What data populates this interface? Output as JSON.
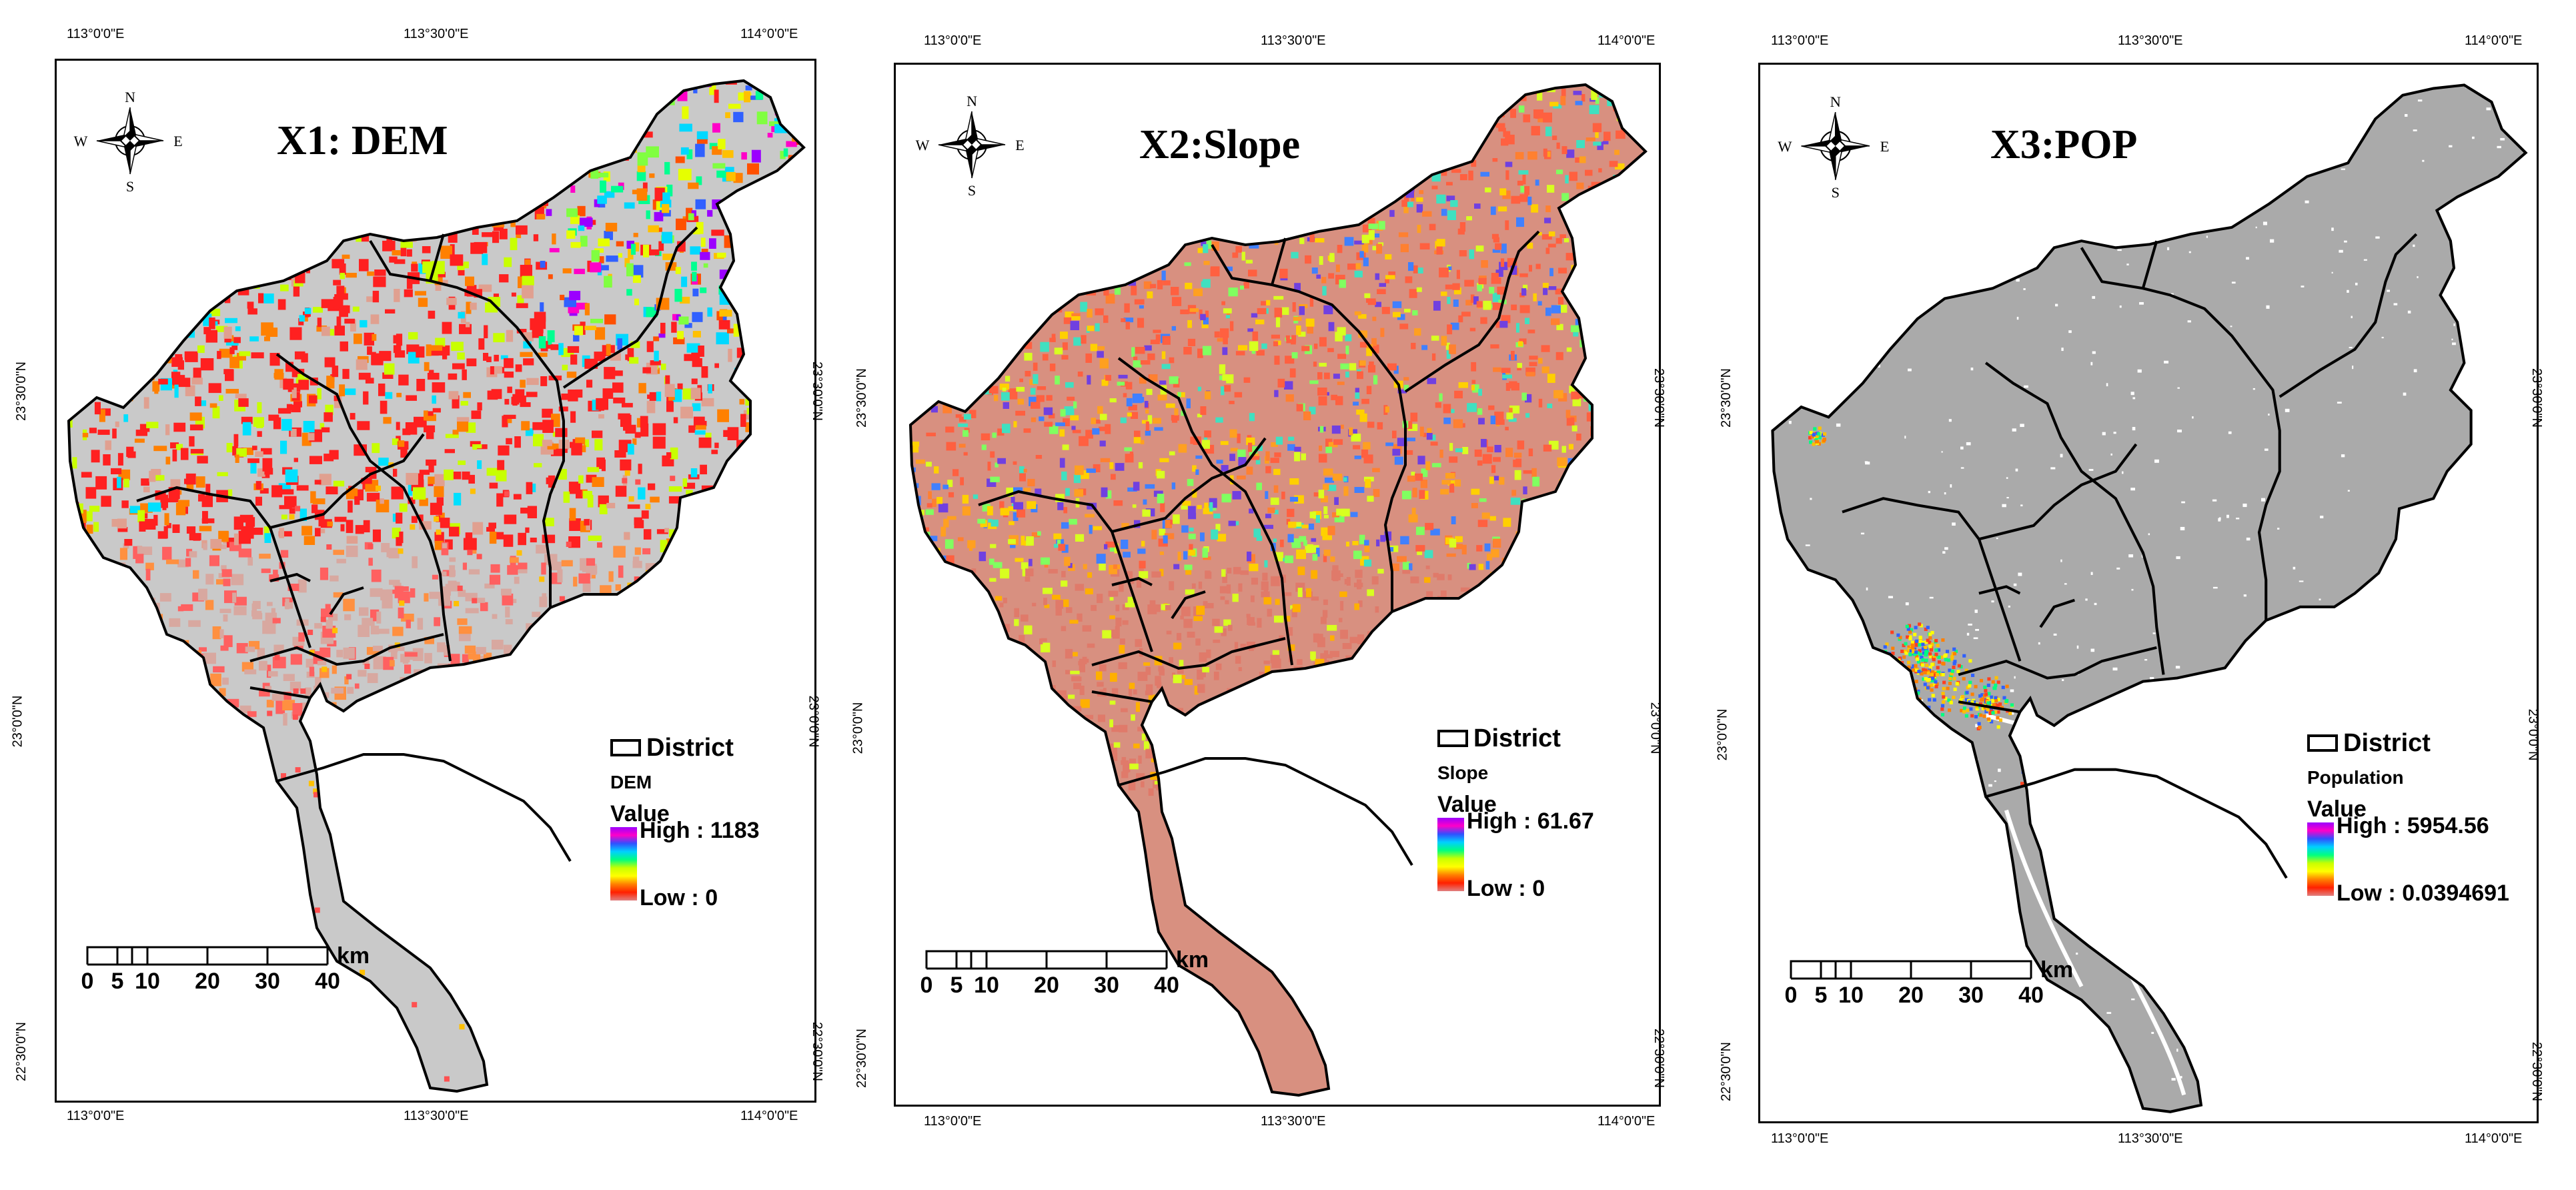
{
  "panels": [
    {
      "id": "dem",
      "title": "X1: DEM",
      "layer_label": "DEM",
      "value_label": "Value",
      "high_label": "High : 1183",
      "low_label": "Low : 0",
      "district_label": "District",
      "style": "dem",
      "mask": "#c9c9c9"
    },
    {
      "id": "slope",
      "title": "X2:Slope",
      "layer_label": "Slope",
      "value_label": "Value",
      "high_label": "High : 61.67",
      "low_label": "Low : 0",
      "district_label": "District",
      "style": "slope",
      "mask": "#d89080"
    },
    {
      "id": "pop",
      "title": "X3:POP",
      "layer_label": "Population",
      "value_label": "Value",
      "high_label": "High : 5954.56",
      "low_label": "Low : 0.0394691",
      "district_label": "District",
      "style": "pop",
      "mask": "#aaaaaa"
    }
  ],
  "ticks": {
    "x": [
      "113°0'0\"E",
      "113°30'0\"E",
      "114°0'0\"E"
    ],
    "y": [
      "23°30'0\"N",
      "23°0'0\"N",
      "22°30'0\"N"
    ]
  },
  "compass": {
    "n": "N",
    "s": "S",
    "e": "E",
    "w": "W"
  },
  "scale_bar": {
    "ticks": [
      "0",
      "5",
      "10",
      "20",
      "30",
      "40"
    ],
    "unit": "km"
  },
  "colors": {
    "mask_dem": "#c9c9c9",
    "mask_slope": "#d89080",
    "mask_pop": "#aaaaaa",
    "frame": "#000000"
  }
}
